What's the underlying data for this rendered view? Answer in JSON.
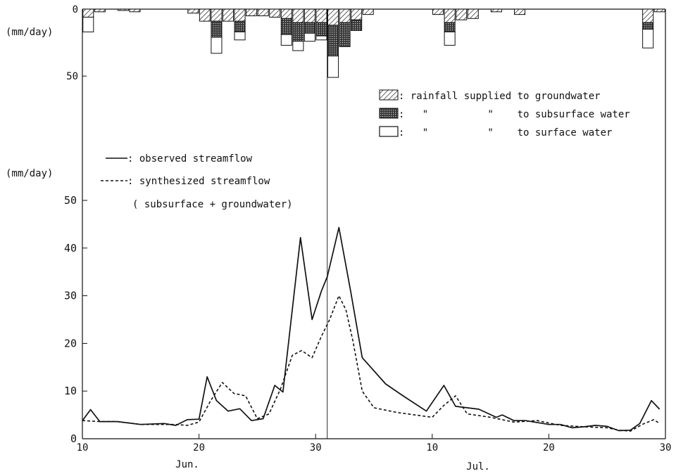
{
  "chart_data": {
    "type": "bar+line",
    "rain_axis": {
      "ylabel": "(mm/day)",
      "ticks": [
        {
          "value": 0,
          "label": "0"
        },
        {
          "value": 50,
          "label": "50"
        }
      ],
      "ylim": [
        0,
        52
      ],
      "inverted": true
    },
    "flow_axis": {
      "ylabel": "(mm/day)",
      "ticks": [
        {
          "value": 0,
          "label": "0"
        },
        {
          "value": 10,
          "label": "10"
        },
        {
          "value": 20,
          "label": "20"
        },
        {
          "value": 30,
          "label": "30"
        },
        {
          "value": 40,
          "label": "40"
        },
        {
          "value": 50,
          "label": "50"
        }
      ],
      "ylim": [
        0,
        50
      ]
    },
    "x_axis": {
      "xlim": [
        0,
        50
      ],
      "ticks": [
        {
          "x": 0,
          "label": "10"
        },
        {
          "x": 10,
          "label": "20"
        },
        {
          "x": 20,
          "label": "30"
        },
        {
          "x": 30,
          "label": "10"
        },
        {
          "x": 40,
          "label": "20"
        },
        {
          "x": 50,
          "label": "30"
        }
      ],
      "months": [
        {
          "x": 8,
          "label": "Jun."
        },
        {
          "x": 33,
          "label": "Jul."
        }
      ],
      "divider_x": 21
    },
    "rain_legend": [
      {
        "key": "groundwater",
        "label": ": rainfall supplied to groundwater"
      },
      {
        "key": "subsurface",
        "label": ":   \"          \"    to subsurface water"
      },
      {
        "key": "surface",
        "label": ":   \"          \"    to surface water"
      }
    ],
    "flow_legend": [
      {
        "key": "observed",
        "label": ": observed streamflow"
      },
      {
        "key": "synthesized",
        "label": ": synthesized streamflow"
      },
      {
        "key": "note",
        "label": "( subsurface + groundwater)"
      }
    ],
    "rain_bars": [
      {
        "x": 0,
        "groundwater": 6,
        "subsurface": 0,
        "surface": 11
      },
      {
        "x": 1,
        "groundwater": 2,
        "subsurface": 0,
        "surface": 0
      },
      {
        "x": 3,
        "groundwater": 1,
        "subsurface": 0,
        "surface": 0
      },
      {
        "x": 4,
        "groundwater": 2,
        "subsurface": 0,
        "surface": 0
      },
      {
        "x": 9,
        "groundwater": 3,
        "subsurface": 0,
        "surface": 0
      },
      {
        "x": 10,
        "groundwater": 9,
        "subsurface": 0,
        "surface": 0
      },
      {
        "x": 11,
        "groundwater": 9,
        "subsurface": 12,
        "surface": 12
      },
      {
        "x": 12,
        "groundwater": 9,
        "subsurface": 0,
        "surface": 0
      },
      {
        "x": 13,
        "groundwater": 9,
        "subsurface": 8,
        "surface": 6
      },
      {
        "x": 14,
        "groundwater": 5,
        "subsurface": 0,
        "surface": 0
      },
      {
        "x": 15,
        "groundwater": 5,
        "subsurface": 0,
        "surface": 0
      },
      {
        "x": 16,
        "groundwater": 6,
        "subsurface": 0,
        "surface": 0
      },
      {
        "x": 17,
        "groundwater": 7,
        "subsurface": 12,
        "surface": 8
      },
      {
        "x": 18,
        "groundwater": 10,
        "subsurface": 14,
        "surface": 7
      },
      {
        "x": 19,
        "groundwater": 10,
        "subsurface": 8,
        "surface": 6
      },
      {
        "x": 20,
        "groundwater": 10,
        "subsurface": 10,
        "surface": 3
      },
      {
        "x": 21,
        "groundwater": 12,
        "subsurface": 23,
        "surface": 16
      },
      {
        "x": 22,
        "groundwater": 10,
        "subsurface": 18,
        "surface": 0
      },
      {
        "x": 23,
        "groundwater": 8,
        "subsurface": 8,
        "surface": 0
      },
      {
        "x": 24,
        "groundwater": 4,
        "subsurface": 0,
        "surface": 0
      },
      {
        "x": 30,
        "groundwater": 4,
        "subsurface": 0,
        "surface": 0
      },
      {
        "x": 31,
        "groundwater": 10,
        "subsurface": 7,
        "surface": 10
      },
      {
        "x": 32,
        "groundwater": 8,
        "subsurface": 0,
        "surface": 0
      },
      {
        "x": 33,
        "groundwater": 7,
        "subsurface": 0,
        "surface": 0
      },
      {
        "x": 35,
        "groundwater": 2,
        "subsurface": 0,
        "surface": 0
      },
      {
        "x": 37,
        "groundwater": 4,
        "subsurface": 0,
        "surface": 0
      },
      {
        "x": 48,
        "groundwater": 10,
        "subsurface": 5,
        "surface": 14
      },
      {
        "x": 49,
        "groundwater": 2,
        "subsurface": 0,
        "surface": 0
      }
    ],
    "series": [
      {
        "key": "observed",
        "values": [
          [
            0,
            3.8
          ],
          [
            0.7,
            6.1
          ],
          [
            1.5,
            3.6
          ],
          [
            3,
            3.6
          ],
          [
            5,
            3.0
          ],
          [
            7,
            3.2
          ],
          [
            8,
            2.8
          ],
          [
            9,
            4.0
          ],
          [
            10,
            4.1
          ],
          [
            10.7,
            13.0
          ],
          [
            11.5,
            8.0
          ],
          [
            12.5,
            5.8
          ],
          [
            13.5,
            6.3
          ],
          [
            14.5,
            3.8
          ],
          [
            15.5,
            4.2
          ],
          [
            16.5,
            11.2
          ],
          [
            17.2,
            9.8
          ],
          [
            18.7,
            42.2
          ],
          [
            19.7,
            25.0
          ],
          [
            20.5,
            31.0
          ],
          [
            21,
            34.0
          ],
          [
            22,
            44.3
          ],
          [
            23,
            31.0
          ],
          [
            24,
            17.0
          ],
          [
            26,
            11.5
          ],
          [
            27.5,
            9.0
          ],
          [
            29.5,
            5.8
          ],
          [
            31,
            11.2
          ],
          [
            32,
            6.8
          ],
          [
            34,
            6.2
          ],
          [
            35.5,
            4.5
          ],
          [
            36,
            5.0
          ],
          [
            37,
            3.8
          ],
          [
            38,
            3.8
          ],
          [
            40,
            3.0
          ],
          [
            41,
            3.0
          ],
          [
            42,
            2.3
          ],
          [
            43,
            2.5
          ],
          [
            44,
            2.8
          ],
          [
            45,
            2.6
          ],
          [
            46,
            1.7
          ],
          [
            47,
            1.8
          ],
          [
            47.8,
            3.2
          ],
          [
            48.8,
            8.0
          ],
          [
            49.5,
            6.2
          ]
        ]
      },
      {
        "key": "synthesized",
        "values": [
          [
            0,
            3.8
          ],
          [
            1.5,
            3.6
          ],
          [
            3,
            3.6
          ],
          [
            5,
            3.0
          ],
          [
            7,
            3.0
          ],
          [
            8,
            3.0
          ],
          [
            9,
            2.8
          ],
          [
            10,
            3.5
          ],
          [
            11,
            8.0
          ],
          [
            12,
            11.8
          ],
          [
            13,
            9.5
          ],
          [
            14,
            9.0
          ],
          [
            15,
            4.2
          ],
          [
            16,
            5.2
          ],
          [
            17,
            10.5
          ],
          [
            18,
            17.5
          ],
          [
            18.8,
            18.5
          ],
          [
            19.7,
            17.0
          ],
          [
            20.5,
            21.5
          ],
          [
            21.2,
            25.0
          ],
          [
            22,
            30.0
          ],
          [
            22.6,
            27.0
          ],
          [
            23.2,
            20.5
          ],
          [
            24,
            10.0
          ],
          [
            25,
            6.5
          ],
          [
            27,
            5.5
          ],
          [
            30,
            4.5
          ],
          [
            31,
            7.0
          ],
          [
            32,
            9.0
          ],
          [
            33,
            5.2
          ],
          [
            35,
            4.5
          ],
          [
            37,
            3.5
          ],
          [
            39,
            3.8
          ],
          [
            41,
            2.8
          ],
          [
            43,
            2.5
          ],
          [
            45,
            2.3
          ],
          [
            46,
            1.8
          ],
          [
            47,
            1.6
          ],
          [
            48,
            3.0
          ],
          [
            49,
            4.0
          ],
          [
            49.5,
            3.2
          ]
        ]
      }
    ]
  }
}
